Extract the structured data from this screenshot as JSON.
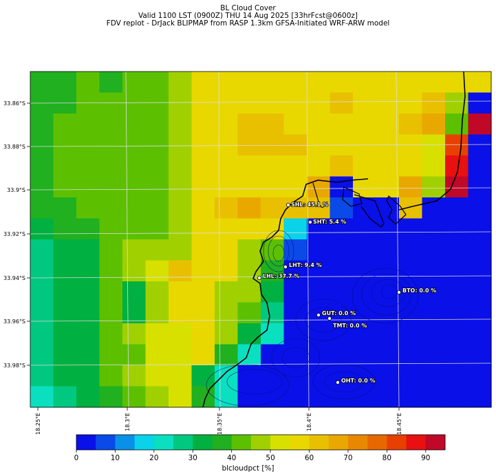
{
  "titles": {
    "line1": "BL Cloud Cover",
    "line2": "Valid 1100 LST (0900Z) THU 14 Aug 2025 [33hrFcst@0600z]",
    "line3": "FDV replot - DrJack BLIPMAP from RASP 1.3km GFSA-Initiated WRF-ARW model"
  },
  "chart_data": {
    "type": "heatmap",
    "x_ticks": [
      "18.25°E",
      "18.3°E",
      "18.35°E",
      "18.4°E",
      "18.45°E"
    ],
    "y_ticks": [
      "33.86°S",
      "33.88°S",
      "33.9°S",
      "33.92°S",
      "33.94°S",
      "33.96°S",
      "33.98°S"
    ],
    "stations": [
      {
        "label": "SHL: 45.1 %"
      },
      {
        "label": "SHT: 5.4 %"
      },
      {
        "label": "LHT: 9.4 %"
      },
      {
        "label": "LHL: 37.7 %"
      },
      {
        "label": "BTO: 0.0 %"
      },
      {
        "label": "GUT: 0.0 %"
      },
      {
        "label": "TMT: 0.0 %"
      },
      {
        "label": "OHT: 0.0 %"
      }
    ],
    "colorbar": {
      "label": "blcloudpct [%]",
      "ticks": [
        "0",
        "10",
        "20",
        "30",
        "40",
        "50",
        "60",
        "70",
        "80",
        "90"
      ],
      "range": [
        0,
        95
      ],
      "colors": [
        "#0a10e8",
        "#0a4ae8",
        "#0a90e8",
        "#0ad2e8",
        "#0ae0c0",
        "#00c880",
        "#00b040",
        "#20b020",
        "#5cc000",
        "#a0d000",
        "#d8e000",
        "#e8d800",
        "#e8c000",
        "#e8a800",
        "#e88800",
        "#e86800",
        "#e84000",
        "#e81010",
        "#c00828"
      ],
      "grid_values": [
        [
          35,
          35,
          40,
          35,
          40,
          40,
          45,
          55,
          55,
          55,
          55,
          55,
          55,
          55,
          55,
          55,
          55,
          55,
          55,
          55
        ],
        [
          35,
          35,
          40,
          40,
          40,
          40,
          45,
          55,
          55,
          55,
          55,
          55,
          55,
          60,
          55,
          55,
          55,
          60,
          45,
          0
        ],
        [
          35,
          40,
          40,
          40,
          40,
          40,
          45,
          55,
          55,
          60,
          60,
          55,
          55,
          55,
          55,
          55,
          60,
          65,
          40,
          90
        ],
        [
          35,
          40,
          40,
          40,
          40,
          40,
          45,
          55,
          55,
          60,
          60,
          60,
          55,
          55,
          55,
          55,
          55,
          50,
          80,
          0
        ],
        [
          35,
          40,
          40,
          40,
          40,
          40,
          45,
          55,
          55,
          55,
          55,
          55,
          55,
          60,
          55,
          55,
          55,
          50,
          85,
          0
        ],
        [
          35,
          40,
          40,
          40,
          40,
          40,
          45,
          55,
          55,
          55,
          55,
          55,
          65,
          0,
          55,
          55,
          65,
          45,
          90,
          0
        ],
        [
          35,
          35,
          40,
          40,
          40,
          40,
          45,
          55,
          60,
          65,
          60,
          60,
          60,
          5,
          0,
          0,
          60,
          0,
          0,
          0
        ],
        [
          30,
          35,
          35,
          40,
          40,
          40,
          45,
          55,
          55,
          55,
          55,
          15,
          0,
          0,
          0,
          0,
          0,
          0,
          0,
          0
        ],
        [
          25,
          30,
          30,
          40,
          45,
          45,
          45,
          55,
          55,
          45,
          40,
          5,
          0,
          0,
          0,
          0,
          0,
          0,
          0,
          0
        ],
        [
          25,
          30,
          30,
          40,
          45,
          50,
          60,
          55,
          55,
          45,
          35,
          0,
          0,
          0,
          0,
          0,
          0,
          0,
          0,
          0
        ],
        [
          25,
          30,
          30,
          40,
          30,
          45,
          55,
          55,
          45,
          45,
          30,
          0,
          0,
          0,
          0,
          0,
          0,
          0,
          0,
          0
        ],
        [
          25,
          30,
          30,
          40,
          30,
          45,
          55,
          55,
          45,
          40,
          25,
          0,
          0,
          0,
          0,
          0,
          0,
          0,
          0,
          0
        ],
        [
          25,
          30,
          30,
          40,
          45,
          50,
          50,
          55,
          45,
          30,
          20,
          0,
          0,
          0,
          0,
          0,
          0,
          0,
          0,
          0
        ],
        [
          25,
          30,
          30,
          40,
          40,
          50,
          50,
          55,
          35,
          20,
          0,
          0,
          0,
          0,
          0,
          0,
          0,
          0,
          0,
          0
        ],
        [
          25,
          30,
          30,
          40,
          45,
          50,
          50,
          30,
          20,
          0,
          0,
          0,
          0,
          0,
          0,
          0,
          0,
          0,
          0,
          0
        ],
        [
          20,
          25,
          30,
          35,
          40,
          45,
          50,
          35,
          20,
          0,
          0,
          0,
          0,
          0,
          0,
          0,
          0,
          0,
          0,
          0
        ]
      ]
    }
  }
}
